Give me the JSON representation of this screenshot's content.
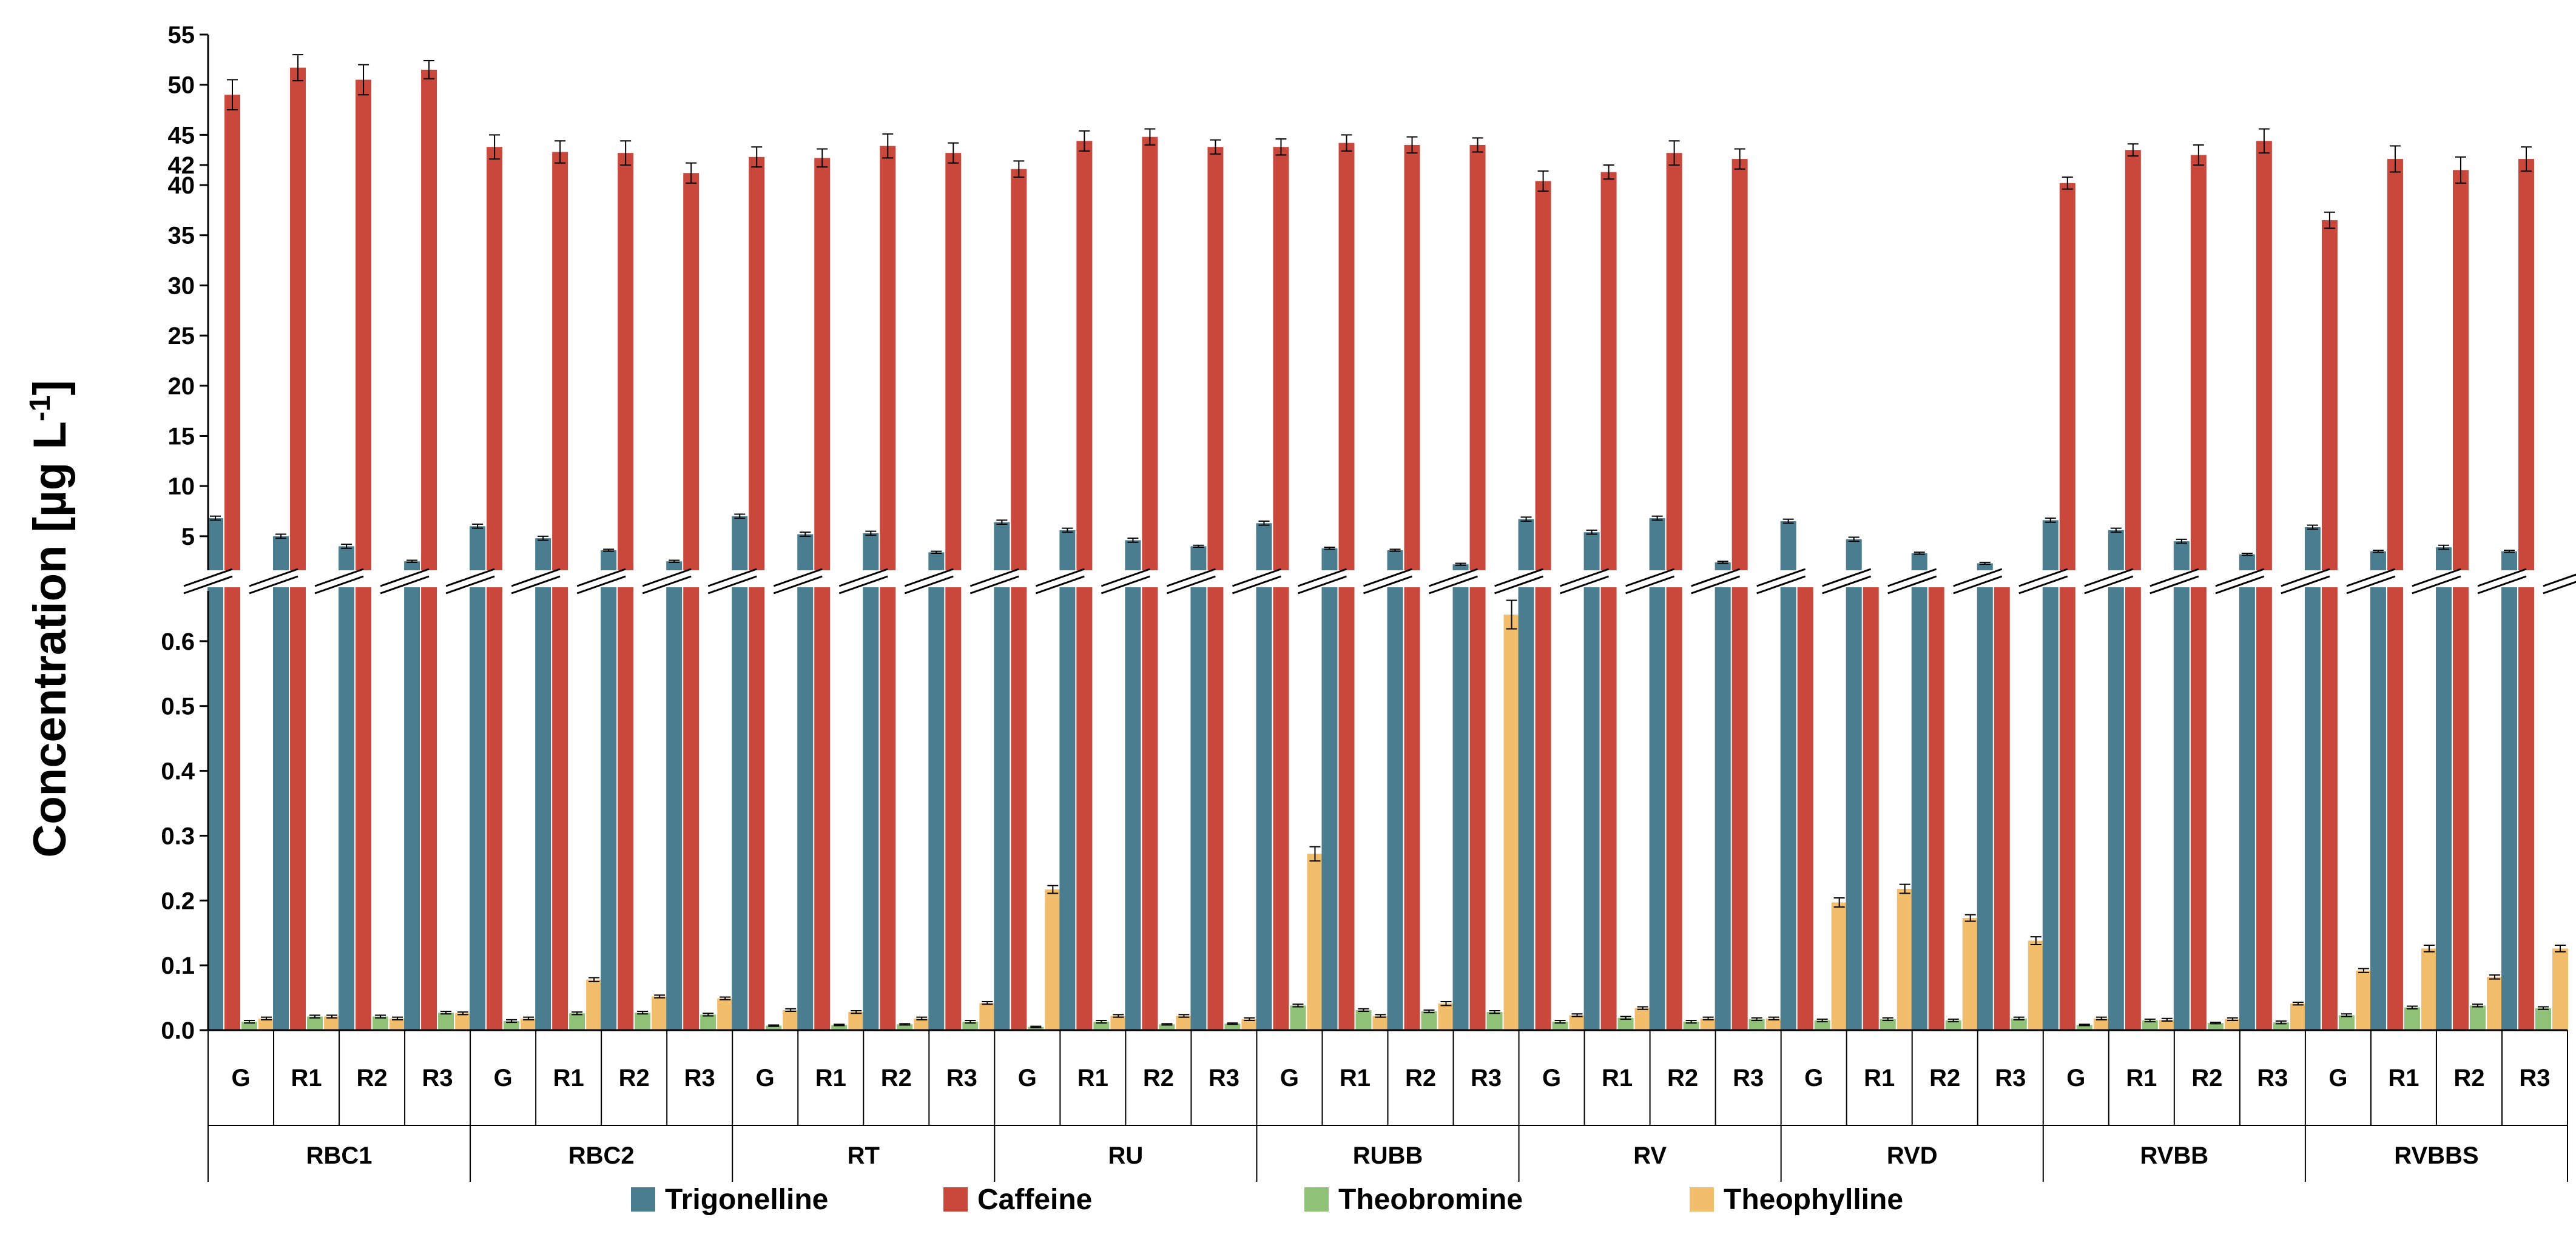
{
  "chart_data": {
    "type": "bar",
    "ylabel": "Concentration [µg L-1]",
    "ylabel_main": "Concentration [µg L",
    "ylabel_sup": "-1",
    "ylabel_end": "]",
    "broken_axis": true,
    "upper_axis": {
      "ylim": [
        1,
        55
      ],
      "ticks": [
        "5",
        "10",
        "15",
        "20",
        "25",
        "30",
        "35",
        "40",
        "42",
        "45",
        "50",
        "55"
      ]
    },
    "lower_axis": {
      "ylim": [
        0,
        0.7
      ],
      "ticks": [
        "0.0",
        "0.1",
        "0.2",
        "0.3",
        "0.4",
        "0.5",
        "0.6"
      ]
    },
    "groups": [
      "RBC1",
      "RBC2",
      "RT",
      "RU",
      "RUBB",
      "RV",
      "RVD",
      "RVBB",
      "RVBBS"
    ],
    "subcategories": [
      "G",
      "R1",
      "R2",
      "R3"
    ],
    "legend_position": "bottom",
    "series": [
      {
        "name": "Trigonelline",
        "color": "#4a7d8f",
        "axis": "upper",
        "values": [
          [
            6.8,
            5.0,
            4.0,
            2.5
          ],
          [
            6.0,
            4.8,
            3.6,
            2.5
          ],
          [
            7.0,
            5.2,
            5.3,
            3.4
          ],
          [
            6.4,
            5.6,
            4.6,
            4.0
          ],
          [
            6.3,
            3.8,
            3.6,
            2.2
          ],
          [
            6.7,
            5.4,
            6.8,
            2.4
          ],
          [
            6.5,
            4.7,
            3.3,
            2.3
          ],
          [
            6.6,
            5.6,
            4.5,
            3.2
          ],
          [
            5.9,
            3.5,
            3.9,
            3.5
          ]
        ],
        "errors": [
          [
            0.2,
            0.2,
            0.2,
            0.1
          ],
          [
            0.2,
            0.2,
            0.1,
            0.1
          ],
          [
            0.2,
            0.2,
            0.2,
            0.1
          ],
          [
            0.2,
            0.2,
            0.2,
            0.1
          ],
          [
            0.2,
            0.1,
            0.1,
            0.1
          ],
          [
            0.2,
            0.2,
            0.2,
            0.1
          ],
          [
            0.2,
            0.2,
            0.1,
            0.1
          ],
          [
            0.2,
            0.2,
            0.2,
            0.1
          ],
          [
            0.2,
            0.1,
            0.2,
            0.1
          ]
        ]
      },
      {
        "name": "Caffeine",
        "color": "#c9473b",
        "axis": "upper",
        "values": [
          [
            49.0,
            51.7,
            50.5,
            51.5
          ],
          [
            43.8,
            43.3,
            43.2,
            41.2
          ],
          [
            42.8,
            42.7,
            43.9,
            43.2
          ],
          [
            41.6,
            44.4,
            44.8,
            43.8
          ],
          [
            43.8,
            44.2,
            44.0,
            44.0
          ],
          [
            40.4,
            41.3,
            43.2,
            42.6
          ],
          [
            0.9,
            0.9,
            0.9,
            0.8
          ],
          [
            40.2,
            43.5,
            43.0,
            44.4
          ],
          [
            36.5,
            42.6,
            41.5,
            42.6
          ]
        ],
        "errors": [
          [
            1.5,
            1.3,
            1.5,
            0.9
          ],
          [
            1.2,
            1.1,
            1.2,
            1.0
          ],
          [
            1.0,
            0.9,
            1.2,
            1.0
          ],
          [
            0.8,
            1.0,
            0.8,
            0.7
          ],
          [
            0.8,
            0.8,
            0.8,
            0.7
          ],
          [
            1.0,
            0.7,
            1.2,
            1.0
          ],
          [
            0.1,
            0.1,
            0.1,
            0.1
          ],
          [
            0.6,
            0.6,
            1.0,
            1.2
          ],
          [
            0.8,
            1.3,
            1.3,
            1.2
          ]
        ]
      },
      {
        "name": "Theobromine",
        "color": "#8fc177",
        "axis": "lower",
        "values": [
          [
            0.013,
            0.021,
            0.021,
            0.027
          ],
          [
            0.014,
            0.026,
            0.027,
            0.024
          ],
          [
            0.007,
            0.008,
            0.009,
            0.013
          ],
          [
            0.005,
            0.013,
            0.009,
            0.01
          ],
          [
            0.038,
            0.031,
            0.029,
            0.028
          ],
          [
            0.013,
            0.019,
            0.013,
            0.017
          ],
          [
            0.015,
            0.017,
            0.015,
            0.018
          ],
          [
            0.008,
            0.015,
            0.011,
            0.012
          ],
          [
            0.023,
            0.035,
            0.038,
            0.034
          ]
        ],
        "errors": [
          [
            0.002,
            0.002,
            0.002,
            0.002
          ],
          [
            0.002,
            0.002,
            0.002,
            0.002
          ],
          [
            0.001,
            0.001,
            0.001,
            0.002
          ],
          [
            0.001,
            0.002,
            0.001,
            0.001
          ],
          [
            0.002,
            0.002,
            0.002,
            0.002
          ],
          [
            0.002,
            0.002,
            0.002,
            0.002
          ],
          [
            0.002,
            0.002,
            0.002,
            0.002
          ],
          [
            0.001,
            0.002,
            0.001,
            0.002
          ],
          [
            0.002,
            0.002,
            0.002,
            0.002
          ]
        ]
      },
      {
        "name": "Theophylline",
        "color": "#f2be6c",
        "axis": "lower",
        "values": [
          [
            0.018,
            0.021,
            0.018,
            0.026
          ],
          [
            0.018,
            0.078,
            0.052,
            0.049
          ],
          [
            0.031,
            0.028,
            0.018,
            0.042
          ],
          [
            0.217,
            0.022,
            0.022,
            0.017
          ],
          [
            0.272,
            0.022,
            0.041,
            0.641
          ],
          [
            0.023,
            0.034,
            0.018,
            0.018
          ],
          [
            0.197,
            0.218,
            0.173,
            0.138
          ],
          [
            0.018,
            0.016,
            0.017,
            0.041
          ],
          [
            0.092,
            0.126,
            0.082,
            0.126
          ]
        ],
        "errors": [
          [
            0.002,
            0.002,
            0.002,
            0.002
          ],
          [
            0.002,
            0.003,
            0.002,
            0.002
          ],
          [
            0.002,
            0.002,
            0.002,
            0.002
          ],
          [
            0.006,
            0.002,
            0.002,
            0.002
          ],
          [
            0.011,
            0.002,
            0.003,
            0.022
          ],
          [
            0.002,
            0.002,
            0.002,
            0.002
          ],
          [
            0.007,
            0.007,
            0.005,
            0.006
          ],
          [
            0.002,
            0.002,
            0.002,
            0.002
          ],
          [
            0.003,
            0.005,
            0.003,
            0.005
          ]
        ]
      }
    ]
  }
}
